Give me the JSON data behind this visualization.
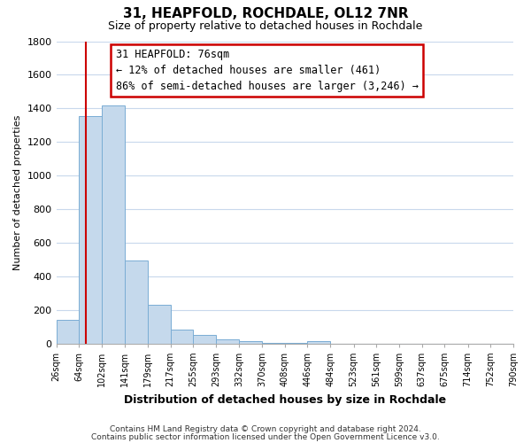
{
  "title": "31, HEAPFOLD, ROCHDALE, OL12 7NR",
  "subtitle": "Size of property relative to detached houses in Rochdale",
  "xlabel": "Distribution of detached houses by size in Rochdale",
  "ylabel": "Number of detached properties",
  "bar_edges": [
    26,
    64,
    102,
    141,
    179,
    217,
    255,
    293,
    332,
    370,
    408,
    446,
    484,
    523,
    561,
    599,
    637,
    675,
    714,
    752,
    790
  ],
  "bar_heights": [
    140,
    1355,
    1415,
    495,
    230,
    82,
    50,
    25,
    15,
    5,
    5,
    15,
    0,
    0,
    0,
    0,
    0,
    0,
    0,
    0
  ],
  "bar_color": "#c5d9ec",
  "bar_edge_color": "#7aadd4",
  "vline_x": 76,
  "vline_color": "#cc0000",
  "ylim": [
    0,
    1800
  ],
  "yticks": [
    0,
    200,
    400,
    600,
    800,
    1000,
    1200,
    1400,
    1600,
    1800
  ],
  "annotation_title": "31 HEAPFOLD: 76sqm",
  "annotation_line1": "← 12% of detached houses are smaller (461)",
  "annotation_line2": "86% of semi-detached houses are larger (3,246) →",
  "footer_line1": "Contains HM Land Registry data © Crown copyright and database right 2024.",
  "footer_line2": "Contains public sector information licensed under the Open Government Licence v3.0.",
  "tick_labels": [
    "26sqm",
    "64sqm",
    "102sqm",
    "141sqm",
    "179sqm",
    "217sqm",
    "255sqm",
    "293sqm",
    "332sqm",
    "370sqm",
    "408sqm",
    "446sqm",
    "484sqm",
    "523sqm",
    "561sqm",
    "599sqm",
    "637sqm",
    "675sqm",
    "714sqm",
    "752sqm",
    "790sqm"
  ],
  "background_color": "#ffffff",
  "grid_color": "#c8d8ec"
}
